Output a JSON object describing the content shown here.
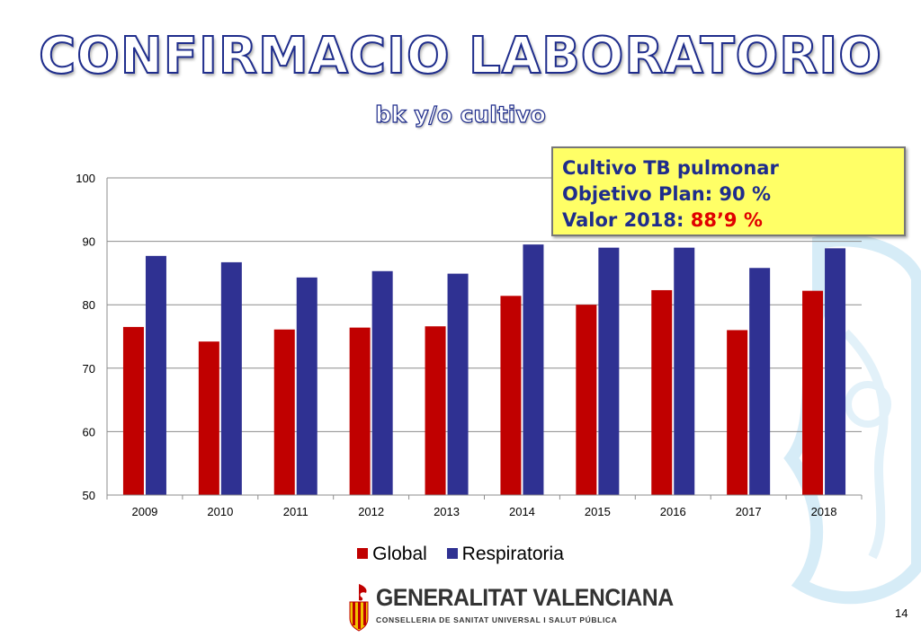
{
  "title": "CONFIRMACIO LABORATORIO",
  "subtitle": "bk y/o cultivo",
  "note": {
    "line1": "Cultivo TB pulmonar",
    "line2_label": "Objetivo Plan:",
    "line2_value": "90 %",
    "line3_label": "Valor 2018:",
    "line3_value": "88’9 %"
  },
  "legend": {
    "global": "Global",
    "respiratoria": "Respiratoria"
  },
  "logo": {
    "name": "GENERALITAT VALENCIANA",
    "sub": "CONSELLERIA DE SANITAT UNIVERSAL I SALUT PÚBLICA"
  },
  "page_number": "14",
  "colors": {
    "global": "#c00000",
    "respiratoria": "#2f3192",
    "title_outline": "#1f2d8c",
    "note_bg": "#ffff66",
    "note_red": "#e00000"
  },
  "icons": {
    "logo": "generalitat-bat-emblem",
    "watermark": "faded-shield-watermark"
  },
  "chart_data": {
    "type": "bar",
    "categories": [
      "2009",
      "2010",
      "2011",
      "2012",
      "2013",
      "2014",
      "2015",
      "2016",
      "2017",
      "2018"
    ],
    "series": [
      {
        "name": "Global",
        "values": [
          76.5,
          74.2,
          76.1,
          76.4,
          76.6,
          81.4,
          80.0,
          82.3,
          76.0,
          82.2
        ]
      },
      {
        "name": "Respiratoria",
        "values": [
          87.7,
          86.7,
          84.3,
          85.3,
          84.9,
          89.5,
          89.0,
          89.0,
          85.8,
          88.9
        ]
      }
    ],
    "ylim": [
      50,
      100
    ],
    "yticks": [
      50,
      60,
      70,
      80,
      90,
      100
    ],
    "grid": true,
    "legend_position": "bottom"
  }
}
